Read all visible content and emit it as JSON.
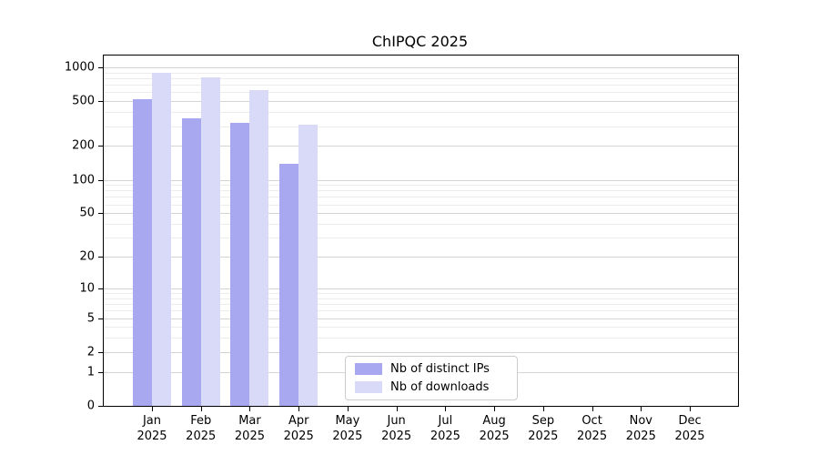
{
  "title": "ChIPQC 2025",
  "colors": {
    "distinct_ips": "#a8a8f0",
    "downloads": "#d9d9f8",
    "grid_major": "#d4d4d4",
    "grid_minor": "#ececec",
    "axis_frame": "#000000",
    "legend_border": "#cccccc"
  },
  "chart_data": {
    "type": "bar",
    "title": "ChIPQC 2025",
    "xlabel": "",
    "ylabel": "",
    "y_scale": "log10(1+x)",
    "y_ticks": [
      0,
      1,
      2,
      5,
      10,
      20,
      50,
      100,
      200,
      500,
      1000
    ],
    "y_minor_gridlines": [
      3,
      4,
      6,
      7,
      8,
      9,
      30,
      40,
      60,
      70,
      80,
      90,
      300,
      400,
      600,
      700,
      800,
      900
    ],
    "ylim": [
      0,
      1100
    ],
    "grid": true,
    "months": [
      "Jan",
      "Feb",
      "Mar",
      "Apr",
      "May",
      "Jun",
      "Jul",
      "Aug",
      "Sep",
      "Oct",
      "Nov",
      "Dec"
    ],
    "year_label": "2025",
    "series": [
      {
        "name": "Nb of distinct IPs",
        "color": "#a8a8f0",
        "values": [
          520,
          350,
          320,
          140,
          null,
          null,
          null,
          null,
          null,
          null,
          null,
          null
        ]
      },
      {
        "name": "Nb of downloads",
        "color": "#d9d9f8",
        "values": [
          900,
          810,
          630,
          310,
          null,
          null,
          null,
          null,
          null,
          null,
          null,
          null
        ]
      }
    ],
    "legend_position": "bottom-center"
  }
}
